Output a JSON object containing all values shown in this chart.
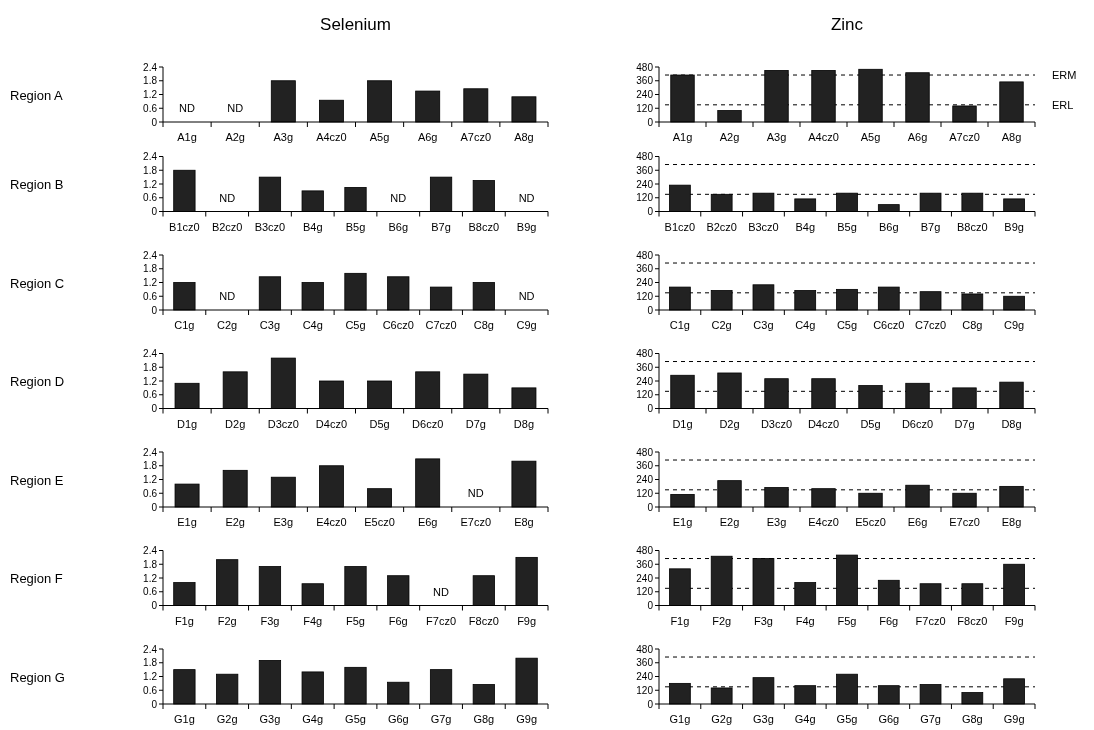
{
  "chart_data": [
    {
      "type": "bar",
      "title": "Selenium",
      "ylabel": "Region A",
      "categories": [
        "A1g",
        "A2g",
        "A3g",
        "A4cz0",
        "A5g",
        "A6g",
        "A7cz0",
        "A8g"
      ],
      "values": [
        null,
        null,
        1.8,
        0.95,
        1.8,
        1.35,
        1.45,
        1.1
      ],
      "color": "#222222",
      "ylim": [
        0,
        2.4
      ],
      "yticks": [
        0,
        0.6,
        1.2,
        1.8,
        2.4
      ],
      "annotations": [
        "ND",
        "ND"
      ]
    },
    {
      "type": "bar",
      "title": "Zinc",
      "categories": [
        "A1g",
        "A2g",
        "A3g",
        "A4cz0",
        "A5g",
        "A6g",
        "A7cz0",
        "A8g"
      ],
      "values": [
        410,
        100,
        450,
        450,
        460,
        430,
        140,
        350
      ],
      "color": "#222222",
      "ylim": [
        0,
        480
      ],
      "yticks": [
        0,
        120,
        240,
        360,
        480
      ],
      "ref_lines": [
        {
          "axis": "y",
          "value": 410,
          "label": "ERM",
          "line_style": "dashed"
        },
        {
          "axis": "y",
          "value": 150,
          "label": "ERL",
          "line_style": "dashed"
        }
      ]
    },
    {
      "type": "bar",
      "ylabel": "Region B",
      "categories": [
        "B1cz0",
        "B2cz0",
        "B3cz0",
        "B4g",
        "B5g",
        "B6g",
        "B7g",
        "B8cz0",
        "B9g"
      ],
      "values": [
        1.8,
        null,
        1.5,
        0.9,
        1.05,
        null,
        1.5,
        1.35,
        null
      ],
      "color": "#222222",
      "ylim": [
        0,
        2.4
      ],
      "yticks": [
        0,
        0.6,
        1.2,
        1.8,
        2.4
      ],
      "annotations": [
        "ND",
        "ND",
        "ND"
      ]
    },
    {
      "type": "bar",
      "categories": [
        "B1cz0",
        "B2cz0",
        "B3cz0",
        "B4g",
        "B5g",
        "B6g",
        "B7g",
        "B8cz0",
        "B9g"
      ],
      "values": [
        230,
        150,
        160,
        110,
        160,
        60,
        160,
        160,
        110
      ],
      "color": "#222222",
      "ylim": [
        0,
        480
      ],
      "yticks": [
        0,
        120,
        240,
        360,
        480
      ],
      "ref_lines": [
        {
          "axis": "y",
          "value": 410,
          "line_style": "dashed"
        },
        {
          "axis": "y",
          "value": 150,
          "line_style": "dashed"
        }
      ]
    },
    {
      "type": "bar",
      "ylabel": "Region C",
      "categories": [
        "C1g",
        "C2g",
        "C3g",
        "C4g",
        "C5g",
        "C6cz0",
        "C7cz0",
        "C8g",
        "C9g"
      ],
      "values": [
        1.2,
        null,
        1.45,
        1.2,
        1.6,
        1.45,
        1.0,
        1.2,
        null
      ],
      "color": "#222222",
      "ylim": [
        0,
        2.4
      ],
      "yticks": [
        0,
        0.6,
        1.2,
        1.8,
        2.4
      ],
      "annotations": [
        "ND",
        "ND"
      ]
    },
    {
      "type": "bar",
      "categories": [
        "C1g",
        "C2g",
        "C3g",
        "C4g",
        "C5g",
        "C6cz0",
        "C7cz0",
        "C8g",
        "C9g"
      ],
      "values": [
        200,
        170,
        220,
        170,
        180,
        200,
        160,
        140,
        120
      ],
      "color": "#222222",
      "ylim": [
        0,
        480
      ],
      "yticks": [
        0,
        120,
        240,
        360,
        480
      ],
      "ref_lines": [
        {
          "axis": "y",
          "value": 410,
          "line_style": "dashed"
        },
        {
          "axis": "y",
          "value": 150,
          "line_style": "dashed"
        }
      ]
    },
    {
      "type": "bar",
      "ylabel": "Region D",
      "categories": [
        "D1g",
        "D2g",
        "D3cz0",
        "D4cz0",
        "D5g",
        "D6cz0",
        "D7g",
        "D8g"
      ],
      "values": [
        1.1,
        1.6,
        2.2,
        1.2,
        1.2,
        1.6,
        1.5,
        0.9
      ],
      "color": "#222222",
      "ylim": [
        0,
        2.4
      ],
      "yticks": [
        0,
        0.6,
        1.2,
        1.8,
        2.4
      ]
    },
    {
      "type": "bar",
      "categories": [
        "D1g",
        "D2g",
        "D3cz0",
        "D4cz0",
        "D5g",
        "D6cz0",
        "D7g",
        "D8g"
      ],
      "values": [
        290,
        310,
        260,
        260,
        200,
        220,
        180,
        230
      ],
      "color": "#222222",
      "ylim": [
        0,
        480
      ],
      "yticks": [
        0,
        120,
        240,
        360,
        480
      ],
      "ref_lines": [
        {
          "axis": "y",
          "value": 410,
          "line_style": "dashed"
        },
        {
          "axis": "y",
          "value": 150,
          "line_style": "dashed"
        }
      ]
    },
    {
      "type": "bar",
      "ylabel": "Region E",
      "categories": [
        "E1g",
        "E2g",
        "E3g",
        "E4cz0",
        "E5cz0",
        "E6g",
        "E7cz0",
        "E8g"
      ],
      "values": [
        1.0,
        1.6,
        1.3,
        1.8,
        0.8,
        2.1,
        null,
        2.0
      ],
      "color": "#222222",
      "ylim": [
        0,
        2.4
      ],
      "yticks": [
        0,
        0.6,
        1.2,
        1.8,
        2.4
      ],
      "annotations": [
        "ND"
      ]
    },
    {
      "type": "bar",
      "categories": [
        "E1g",
        "E2g",
        "E3g",
        "E4cz0",
        "E5cz0",
        "E6g",
        "E7cz0",
        "E8g"
      ],
      "values": [
        110,
        230,
        170,
        160,
        120,
        190,
        120,
        180
      ],
      "color": "#222222",
      "ylim": [
        0,
        480
      ],
      "yticks": [
        0,
        120,
        240,
        360,
        480
      ],
      "ref_lines": [
        {
          "axis": "y",
          "value": 410,
          "line_style": "dashed"
        },
        {
          "axis": "y",
          "value": 150,
          "line_style": "dashed"
        }
      ]
    },
    {
      "type": "bar",
      "ylabel": "Region F",
      "categories": [
        "F1g",
        "F2g",
        "F3g",
        "F4g",
        "F5g",
        "F6g",
        "F7cz0",
        "F8cz0",
        "F9g"
      ],
      "values": [
        1.0,
        2.0,
        1.7,
        0.95,
        1.7,
        1.3,
        null,
        1.3,
        2.1
      ],
      "color": "#222222",
      "ylim": [
        0,
        2.4
      ],
      "yticks": [
        0,
        0.6,
        1.2,
        1.8,
        2.4
      ],
      "annotations": [
        "ND"
      ]
    },
    {
      "type": "bar",
      "categories": [
        "F1g",
        "F2g",
        "F3g",
        "F4g",
        "F5g",
        "F6g",
        "F7cz0",
        "F8cz0",
        "F9g"
      ],
      "values": [
        320,
        430,
        410,
        200,
        440,
        220,
        190,
        190,
        360
      ],
      "color": "#222222",
      "ylim": [
        0,
        480
      ],
      "yticks": [
        0,
        120,
        240,
        360,
        480
      ],
      "ref_lines": [
        {
          "axis": "y",
          "value": 410,
          "line_style": "dashed"
        },
        {
          "axis": "y",
          "value": 150,
          "line_style": "dashed"
        }
      ]
    },
    {
      "type": "bar",
      "ylabel": "Region G",
      "categories": [
        "G1g",
        "G2g",
        "G3g",
        "G4g",
        "G5g",
        "G6g",
        "G7g",
        "G8g",
        "G9g"
      ],
      "values": [
        1.5,
        1.3,
        1.9,
        1.4,
        1.6,
        0.95,
        1.5,
        0.85,
        2.0
      ],
      "color": "#222222",
      "ylim": [
        0,
        2.4
      ],
      "yticks": [
        0,
        0.6,
        1.2,
        1.8,
        2.4
      ]
    },
    {
      "type": "bar",
      "categories": [
        "G1g",
        "G2g",
        "G3g",
        "G4g",
        "G5g",
        "G6g",
        "G7g",
        "G8g",
        "G9g"
      ],
      "values": [
        180,
        140,
        230,
        160,
        260,
        160,
        170,
        100,
        220
      ],
      "color": "#222222",
      "ylim": [
        0,
        480
      ],
      "yticks": [
        0,
        120,
        240,
        360,
        480
      ],
      "ref_lines": [
        {
          "axis": "y",
          "value": 410,
          "line_style": "dashed"
        },
        {
          "axis": "y",
          "value": 150,
          "line_style": "dashed"
        }
      ]
    }
  ]
}
